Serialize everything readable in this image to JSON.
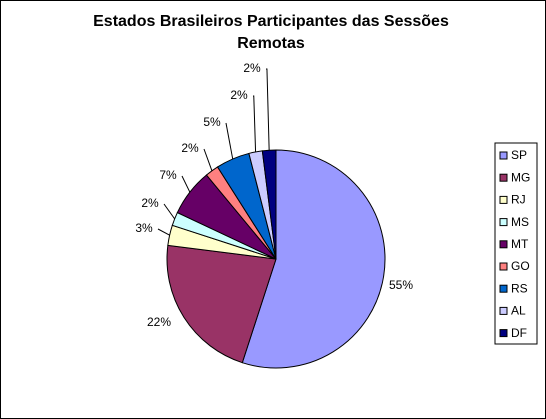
{
  "chart_data": {
    "type": "pie",
    "title": "Estados Brasileiros Participantes das Sessões Remotas",
    "categories": [
      "SP",
      "MG",
      "RJ",
      "MS",
      "MT",
      "GO",
      "RS",
      "AL",
      "DF"
    ],
    "values": [
      55,
      22,
      3,
      2,
      7,
      2,
      5,
      2,
      2
    ],
    "value_labels": [
      "55%",
      "22%",
      "3%",
      "2%",
      "7%",
      "2%",
      "5%",
      "2%",
      "2%"
    ],
    "colors": [
      "#9999ff",
      "#993366",
      "#ffffcc",
      "#ccffff",
      "#660066",
      "#ff8080",
      "#0066cc",
      "#ccccff",
      "#000080"
    ],
    "legend": "right"
  }
}
